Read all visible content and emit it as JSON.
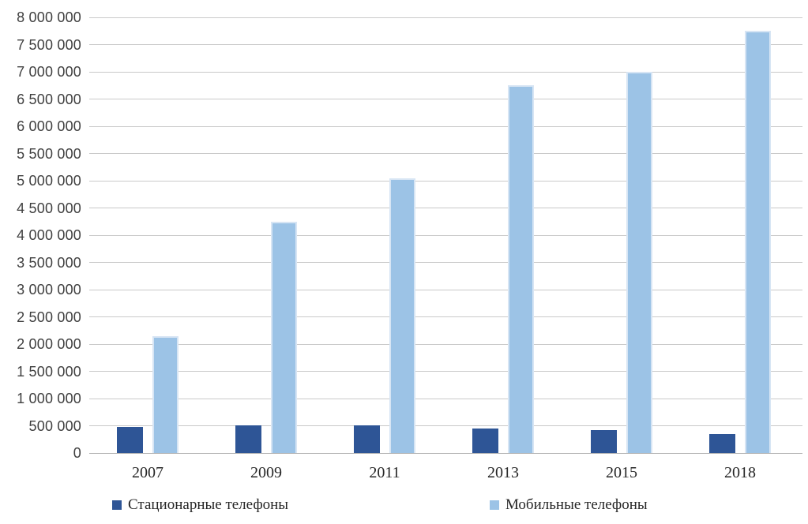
{
  "chart_data": {
    "type": "bar",
    "categories": [
      "2007",
      "2009",
      "2011",
      "2013",
      "2015",
      "2018"
    ],
    "series": [
      {
        "name": "Стационарные телефоны",
        "color": "#2E5596",
        "border_color": "#2E5596",
        "values": [
          480000,
          510000,
          505000,
          450000,
          420000,
          345000
        ]
      },
      {
        "name": "Мобильные телефоны",
        "color": "#9CC3E6",
        "border_color": "#D7E5F4",
        "values": [
          2150000,
          4250000,
          5050000,
          6750000,
          7000000,
          7750000
        ]
      }
    ],
    "title": "",
    "xlabel": "",
    "ylabel": "",
    "ylim": [
      0,
      8000000
    ],
    "ytick_step": 500000,
    "ytick_labels": [
      "0",
      "500 000",
      "1 000 000",
      "1 500 000",
      "2 000 000",
      "2 500 000",
      "3 000 000",
      "3 500 000",
      "4 000 000",
      "4 500 000",
      "5 000 000",
      "5 500 000",
      "6 000 000",
      "6 500 000",
      "7 000 000",
      "7 500 000",
      "8 000 000"
    ],
    "grid": true,
    "legend_position": "bottom"
  },
  "styles": {
    "background": "#FFFFFF",
    "gridline_color": "#C9C9C9",
    "axis_color": "#AFAFAF",
    "ytick_text_color": "#3F3F3F",
    "xtick_text_color": "#262626",
    "legend_text_color": "#262626"
  }
}
